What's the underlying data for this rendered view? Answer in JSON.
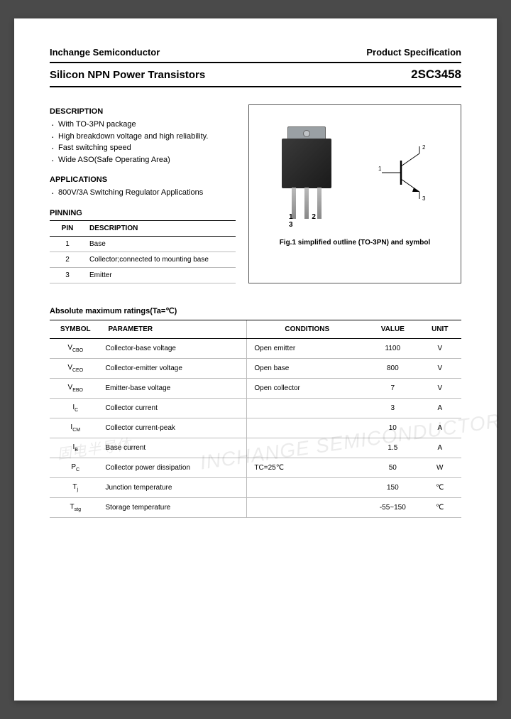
{
  "header": {
    "company": "Inchange Semiconductor",
    "doctype": "Product Specification"
  },
  "title": {
    "product": "Silicon NPN Power Transistors",
    "partno": "2SC3458"
  },
  "description": {
    "heading": "DESCRIPTION",
    "items": [
      "With TO-3PN package",
      "High breakdown voltage and high reliability.",
      "Fast switching speed",
      "Wide ASO(Safe Operating Area)"
    ]
  },
  "applications": {
    "heading": "APPLICATIONS",
    "items": [
      "800V/3A Switching Regulator Applications"
    ]
  },
  "pinning": {
    "heading": "PINNING",
    "col_pin": "PIN",
    "col_desc": "DESCRIPTION",
    "rows": [
      {
        "pin": "1",
        "desc": "Base"
      },
      {
        "pin": "2",
        "desc": "Collector;connected to mounting base"
      },
      {
        "pin": "3",
        "desc": "Emitter"
      }
    ]
  },
  "figure": {
    "pin_labels": "1  2  3",
    "sym_labels": {
      "l1": "1",
      "l2": "2",
      "l3": "3"
    },
    "caption": "Fig.1 simplified outline (TO-3PN) and symbol"
  },
  "ratings": {
    "heading": "Absolute maximum ratings(Ta=℃)",
    "cols": {
      "symbol": "SYMBOL",
      "parameter": "PARAMETER",
      "conditions": "CONDITIONS",
      "value": "VALUE",
      "unit": "UNIT"
    },
    "rows": [
      {
        "sym": "V",
        "sub": "CBO",
        "param": "Collector-base voltage",
        "cond": "Open emitter",
        "val": "1100",
        "unit": "V"
      },
      {
        "sym": "V",
        "sub": "CEO",
        "param": "Collector-emitter voltage",
        "cond": "Open base",
        "val": "800",
        "unit": "V"
      },
      {
        "sym": "V",
        "sub": "EBO",
        "param": "Emitter-base voltage",
        "cond": "Open collector",
        "val": "7",
        "unit": "V"
      },
      {
        "sym": "I",
        "sub": "C",
        "param": "Collector current",
        "cond": "",
        "val": "3",
        "unit": "A"
      },
      {
        "sym": "I",
        "sub": "CM",
        "param": "Collector current-peak",
        "cond": "",
        "val": "10",
        "unit": "A"
      },
      {
        "sym": "I",
        "sub": "B",
        "param": "Base current",
        "cond": "",
        "val": "1.5",
        "unit": "A"
      },
      {
        "sym": "P",
        "sub": "C",
        "param": "Collector power dissipation",
        "cond": "TC=25℃",
        "val": "50",
        "unit": "W"
      },
      {
        "sym": "T",
        "sub": "j",
        "param": "Junction temperature",
        "cond": "",
        "val": "150",
        "unit": "℃"
      },
      {
        "sym": "T",
        "sub": "stg",
        "param": "Storage temperature",
        "cond": "",
        "val": "-55~150",
        "unit": "℃"
      }
    ]
  },
  "watermark": {
    "text1": "INCHANGE SEMICONDUCTOR",
    "text2": "固电半导体"
  }
}
